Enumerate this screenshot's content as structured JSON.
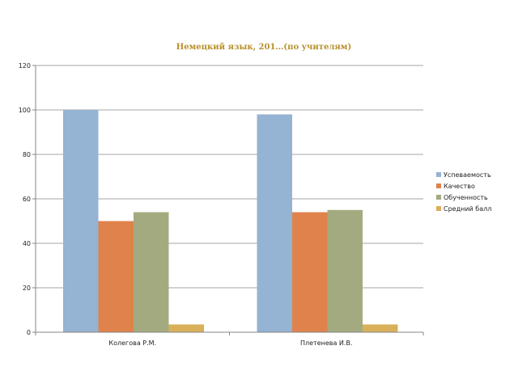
{
  "chart_data": {
    "type": "bar",
    "title": "Немецкий язык, 201…(по учителям)",
    "title_color": "#b8902a",
    "categories": [
      "Колегова Р.М.",
      "Плетенева И.В."
    ],
    "series": [
      {
        "name": "Успеваемость",
        "color": "#95b3d3",
        "values": [
          100,
          98
        ]
      },
      {
        "name": "Качество",
        "color": "#e0824b",
        "values": [
          50,
          54
        ]
      },
      {
        "name": "Обученность",
        "color": "#a4aa80",
        "values": [
          54,
          55
        ]
      },
      {
        "name": "Средний балл",
        "color": "#d9b05a",
        "values": [
          3.5,
          3.5
        ]
      }
    ],
    "ylim": [
      0,
      120
    ],
    "yticks": [
      0,
      20,
      40,
      60,
      80,
      100,
      120
    ],
    "grid": true,
    "legend": "right"
  }
}
